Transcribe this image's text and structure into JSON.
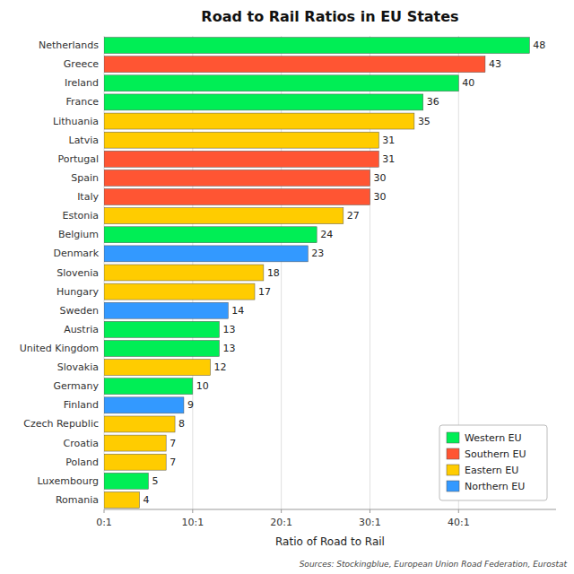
{
  "chart_data": {
    "type": "bar",
    "orientation": "horizontal",
    "title": "Road to Rail Ratios in EU States",
    "x_label": "Ratio of Road to Rail",
    "annotations": [
      "Sources: Stockingblue, European Union Road Federation, Eurostat"
    ],
    "categories": [
      "Netherlands",
      "Greece",
      "Ireland",
      "France",
      "Lithuania",
      "Latvia",
      "Portugal",
      "Spain",
      "Italy",
      "Estonia",
      "Belgium",
      "Denmark",
      "Slovenia",
      "Hungary",
      "Sweden",
      "Austria",
      "United Kingdom",
      "Slovakia",
      "Germany",
      "Finland",
      "Czech Republic",
      "Croatia",
      "Poland",
      "Luxembourg",
      "Romania"
    ],
    "series": [
      {
        "name": "Western EU",
        "color": "#00EE55",
        "values": [
          48,
          null,
          40,
          36,
          null,
          null,
          null,
          null,
          null,
          null,
          24,
          null,
          null,
          null,
          null,
          13,
          13,
          null,
          10,
          null,
          null,
          null,
          null,
          5,
          null
        ]
      },
      {
        "name": "Southern EU",
        "color": "#FF5533",
        "values": [
          null,
          43,
          null,
          null,
          null,
          null,
          31,
          30,
          30,
          null,
          null,
          null,
          null,
          null,
          null,
          null,
          null,
          null,
          null,
          null,
          null,
          null,
          null,
          null,
          null
        ]
      },
      {
        "name": "Eastern EU",
        "color": "#FFCC00",
        "values": [
          null,
          null,
          null,
          null,
          35,
          31,
          null,
          null,
          null,
          27,
          null,
          null,
          18,
          17,
          null,
          null,
          null,
          12,
          null,
          null,
          8,
          7,
          7,
          null,
          4
        ]
      },
      {
        "name": "Northern EU",
        "color": "#3399FF",
        "values": [
          null,
          null,
          null,
          null,
          null,
          null,
          null,
          null,
          null,
          null,
          null,
          23,
          null,
          null,
          14,
          null,
          null,
          null,
          null,
          9,
          null,
          null,
          null,
          null,
          null
        ]
      }
    ],
    "xlim": [
      0,
      51
    ],
    "xticks": [
      {
        "value": 0,
        "label": "0:1"
      },
      {
        "value": 10,
        "label": "10:1"
      },
      {
        "value": 20,
        "label": "20:1"
      },
      {
        "value": 30,
        "label": "30:1"
      },
      {
        "value": 40,
        "label": "40:1"
      }
    ],
    "grid": true,
    "legend": "lower right",
    "data_labels": true
  }
}
